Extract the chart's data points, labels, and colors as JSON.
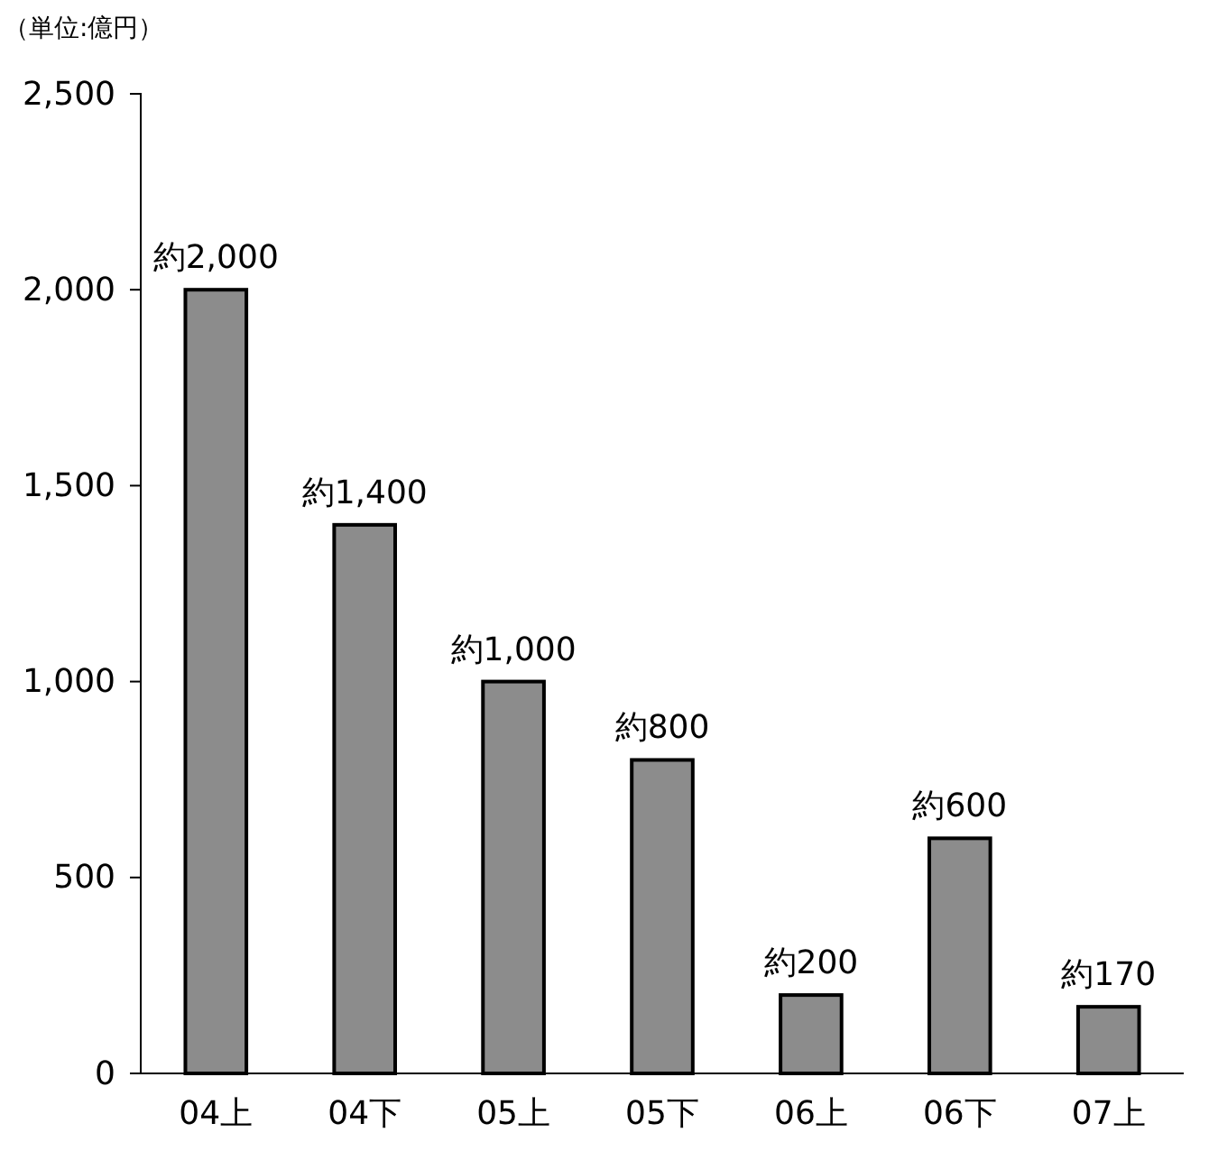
{
  "chart_data": {
    "type": "bar",
    "ylabel": "（単位:億円）",
    "categories": [
      "04上",
      "04下",
      "05上",
      "05下",
      "06上",
      "06下",
      "07上"
    ],
    "values": [
      2000,
      1400,
      1000,
      800,
      200,
      600,
      170
    ],
    "value_labels": [
      "約2,000",
      "約1,400",
      "約1,000",
      "約800",
      "約200",
      "約600",
      "約170"
    ],
    "color": "#8c8c8c",
    "ylim": [
      0,
      2500
    ],
    "yticks": [
      {
        "value": 0,
        "label": "0"
      },
      {
        "value": 500,
        "label": "500"
      },
      {
        "value": 1000,
        "label": "1,000"
      },
      {
        "value": 1500,
        "label": "1,500"
      },
      {
        "value": 2000,
        "label": "2,000"
      },
      {
        "value": 2500,
        "label": "2,500"
      }
    ],
    "grid": false
  }
}
